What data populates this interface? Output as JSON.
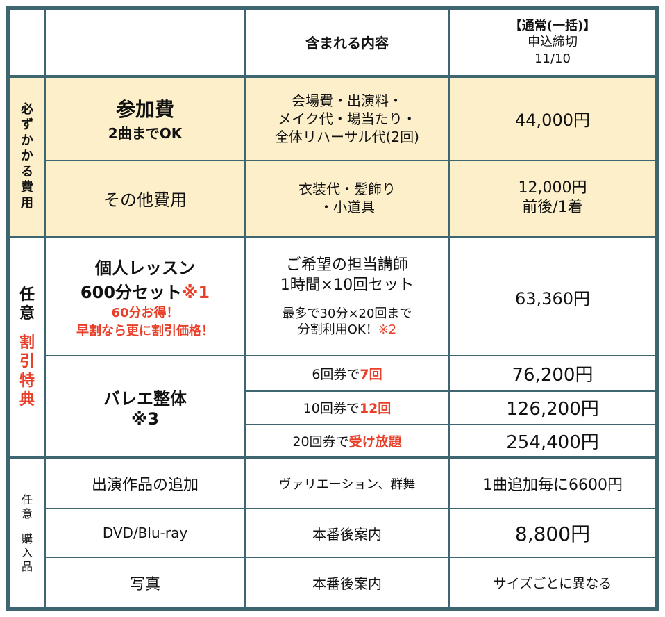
{
  "header": {
    "contents": "含まれる内容",
    "plan_title": "【通常(一括)】",
    "plan_deadline_label": "申込締切",
    "plan_deadline": "11/10"
  },
  "required": {
    "label_chars": [
      "必",
      "ず",
      "か",
      "か",
      "る",
      "費",
      "用"
    ],
    "fee": {
      "name": "参加費",
      "sub": "2曲までOK",
      "contents": [
        "会場費・出演料・",
        "メイク代・場当たり・",
        "全体リハーサル代(2回)"
      ],
      "price": "44,000円"
    },
    "other": {
      "name": "その他費用",
      "contents": [
        "衣装代・髪飾り",
        "・小道具"
      ],
      "price_line1": "12,000円",
      "price_line2": "前後/1着"
    }
  },
  "optional_discount": {
    "label_top": [
      "任",
      "意"
    ],
    "label_bottom": [
      "割",
      "引",
      "特",
      "典"
    ],
    "lesson": {
      "name_line1": "個人レッスン",
      "name_line2": "600分セット",
      "name_note": "※1",
      "red_line1": "60分お得！",
      "red_line2": "早割なら更に割引価格！",
      "contents_line1": "ご希望の担当講師",
      "contents_line2": "1時間×10回セット",
      "contents_line3": "最多で30分×20回まで",
      "contents_line4": "分割利用OK！",
      "contents_note": "※2",
      "price": "63,360円"
    },
    "ballet": {
      "name": "バレエ整体",
      "note": "※3",
      "tickets": [
        {
          "prefix": "6回券で",
          "highlight": "7回",
          "price": "76,200円"
        },
        {
          "prefix": "10回券で",
          "highlight": "12回",
          "price": "126,200円"
        },
        {
          "prefix": "20回券で",
          "highlight": "受け放題",
          "price": "254,400円"
        }
      ]
    }
  },
  "optional_purchase": {
    "label_top": [
      "任",
      "意"
    ],
    "label_bottom": [
      "購",
      "入",
      "品"
    ],
    "rows": [
      {
        "name": "出演作品の追加",
        "contents": "ヴァリエーション、群舞",
        "price": "1曲追加毎に6600円"
      },
      {
        "name": "DVD/Blu-ray",
        "contents": "本番後案内",
        "price": "8,800円"
      },
      {
        "name": "写真",
        "contents": "本番後案内",
        "price": "サイズごとに異なる"
      }
    ]
  }
}
